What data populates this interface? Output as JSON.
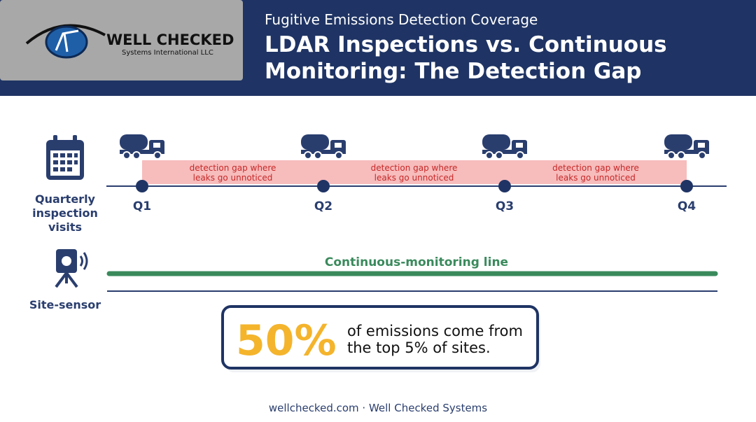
{
  "logo": {
    "name": "WELL CHECKED",
    "tagline": "Systems International LLC"
  },
  "header": {
    "subtitle": "Fugitive Emissions Detection Coverage",
    "title_lines": [
      "LDAR Inspections vs. Continuous",
      "Monitoring: The Detection Gap"
    ]
  },
  "inspection": {
    "label_lines": [
      "Quarterly",
      "inspection",
      "visits"
    ],
    "quarters": [
      "Q1",
      "Q2",
      "Q3",
      "Q4"
    ],
    "gaps": [
      {
        "lines": [
          "detection gap where",
          "leaks go unnoticed"
        ]
      },
      {
        "lines": [
          "detection gap where",
          "leaks go unnoticed"
        ]
      },
      {
        "lines": [
          "detection gap where",
          "leaks go unnoticed"
        ]
      }
    ]
  },
  "monitoring": {
    "label": "Site-sensor",
    "line_label": "Continuous-monitoring line"
  },
  "stat": {
    "value": "50%",
    "text_lines": [
      "of emissions come from",
      "the top 5% of sites."
    ]
  },
  "footer": "wellchecked.com · Well Checked Systems"
}
